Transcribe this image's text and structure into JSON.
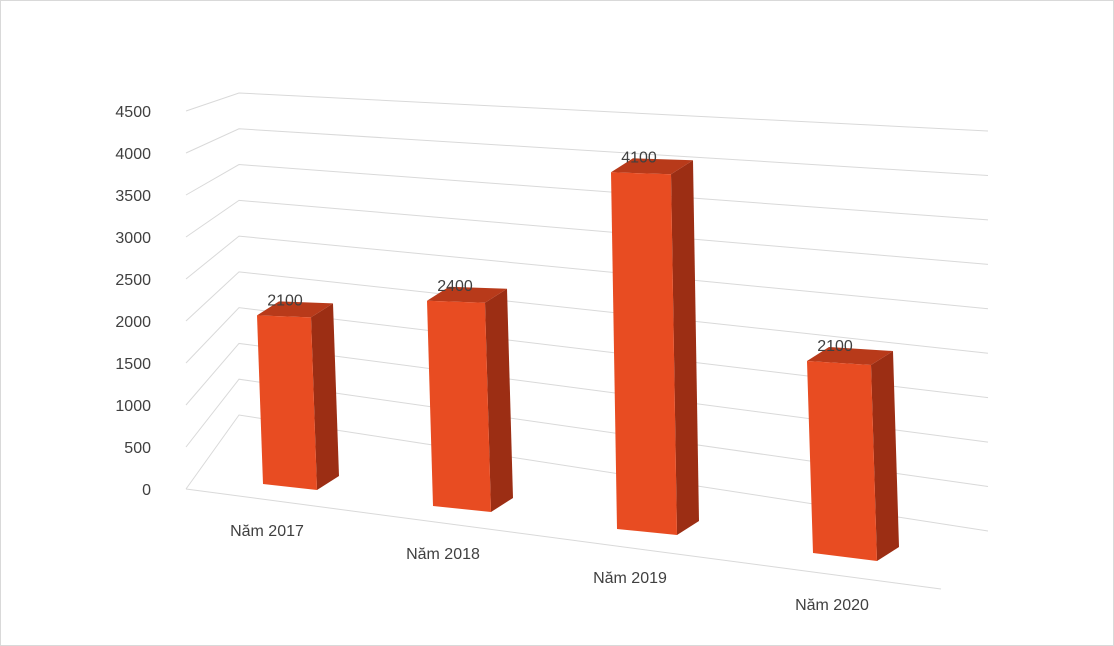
{
  "chart_data": {
    "type": "bar",
    "style": "3d-perspective",
    "categories": [
      "Năm 2017",
      "Năm 2018",
      "Năm 2019",
      "Năm 2020"
    ],
    "series": [
      {
        "values": [
          2100,
          2400,
          4100,
          2100
        ]
      }
    ],
    "data_labels": [
      "2100",
      "2400",
      "4100",
      "2100"
    ],
    "y_ticks": [
      "0",
      "500",
      "1000",
      "1500",
      "2000",
      "2500",
      "3000",
      "3500",
      "4000",
      "4500"
    ],
    "ylim": [
      0,
      4500
    ],
    "grid": true,
    "legend": "none",
    "title": "",
    "xlabel": "",
    "ylabel": "",
    "colors": {
      "bar_front": "#E84C22",
      "bar_side": "#9C2E14",
      "bar_top": "#B83A1A",
      "grid": "#d9d9d9",
      "text": "#404040"
    }
  }
}
